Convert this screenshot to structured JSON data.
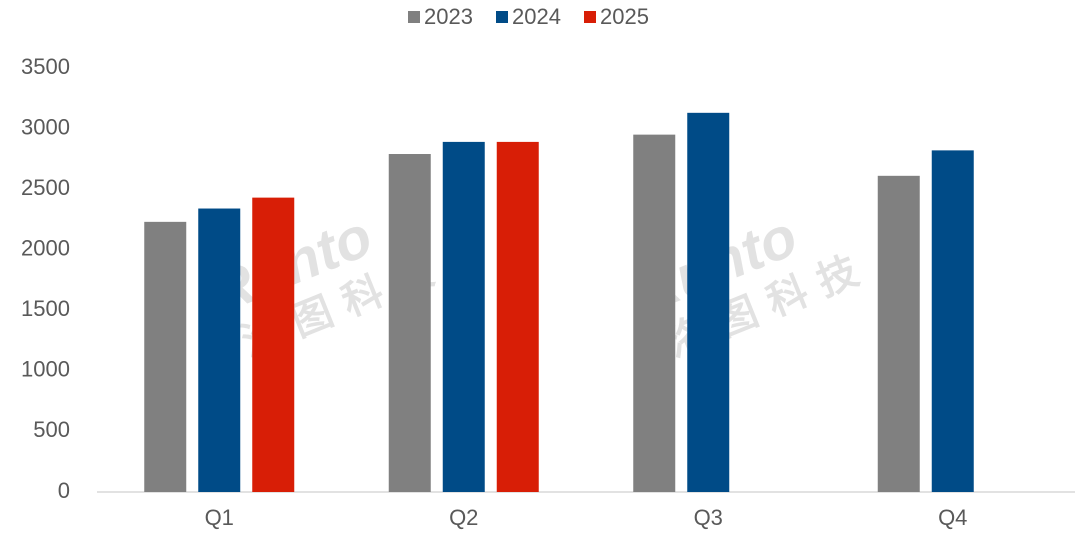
{
  "chart_data": {
    "type": "bar",
    "categories": [
      "Q1",
      "Q2",
      "Q3",
      "Q4"
    ],
    "series": [
      {
        "name": "2023",
        "color": "#808080",
        "values": [
          2230,
          2790,
          2950,
          2610
        ]
      },
      {
        "name": "2024",
        "color": "#004b87",
        "values": [
          2340,
          2890,
          3130,
          2820
        ]
      },
      {
        "name": "2025",
        "color": "#d81e06",
        "values": [
          2430,
          2890,
          null,
          null
        ]
      }
    ],
    "ylim": [
      0,
      3500
    ],
    "yticks": [
      0,
      500,
      1000,
      1500,
      2000,
      2500,
      3000,
      3500
    ],
    "grid": false,
    "legend": "top",
    "watermark": "Runto",
    "watermark_sub": "洛图科技"
  }
}
